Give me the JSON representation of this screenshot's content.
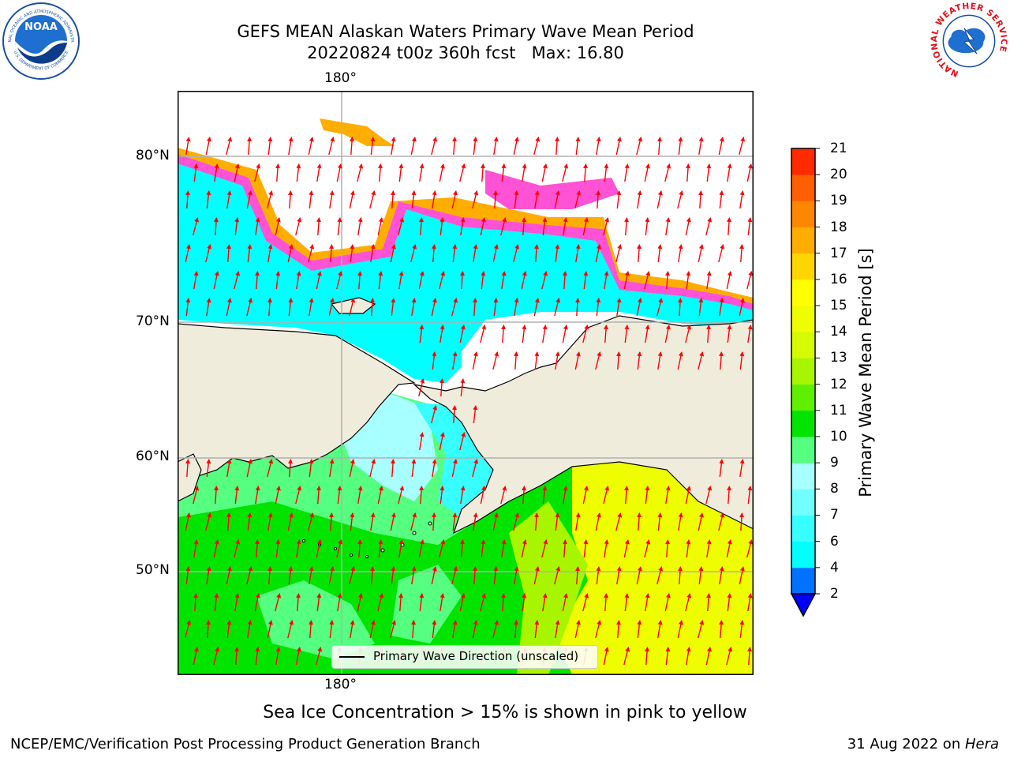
{
  "header": {
    "title_line1": "GEFS MEAN Alaskan Waters Primary Wave Mean Period",
    "title_line2": "20220824 t00z 360h fcst   Max: 16.80"
  },
  "logos": {
    "noaa_text": "NOAA",
    "noaa_ring": "NATIONAL OCEANIC AND ATMOSPHERIC ADMINISTRATION",
    "noaa_ring_bottom": "U.S. DEPARTMENT OF COMMERCE",
    "nws_ring": "NATIONAL WEATHER SERVICE"
  },
  "map": {
    "lon_label_top": "180°",
    "lon_label_bottom": "180°",
    "lat_labels": [
      "80°N",
      "70°N",
      "60°N",
      "50°N"
    ],
    "land_color": "#efecdc",
    "vector_color": "#ff0000",
    "legend_label": "Primary Wave Direction (unscaled)"
  },
  "colorbar": {
    "label": "Primary Wave Mean Period [s]",
    "ticks": [
      "2",
      "4",
      "6",
      "7",
      "8",
      "9",
      "10",
      "11",
      "12",
      "13",
      "14",
      "15",
      "16",
      "17",
      "18",
      "19",
      "20",
      "21"
    ],
    "colors": [
      "#0072ff",
      "#00ffff",
      "#38ffff",
      "#70ffff",
      "#a8ffff",
      "#55ff7f",
      "#00e400",
      "#5ef000",
      "#a8f500",
      "#d6fa00",
      "#eefe00",
      "#ffff00",
      "#ffd500",
      "#ffae00",
      "#ff8700",
      "#ff5f00",
      "#ff2a00"
    ],
    "extend_color": "#0000ff"
  },
  "caption": "Sea Ice Concentration > 15% is shown in pink to yellow",
  "footer": {
    "left": "NCEP/EMC/Verification Post Processing Product Generation Branch",
    "date": "31 Aug 2022 on ",
    "machine": "Hera"
  }
}
